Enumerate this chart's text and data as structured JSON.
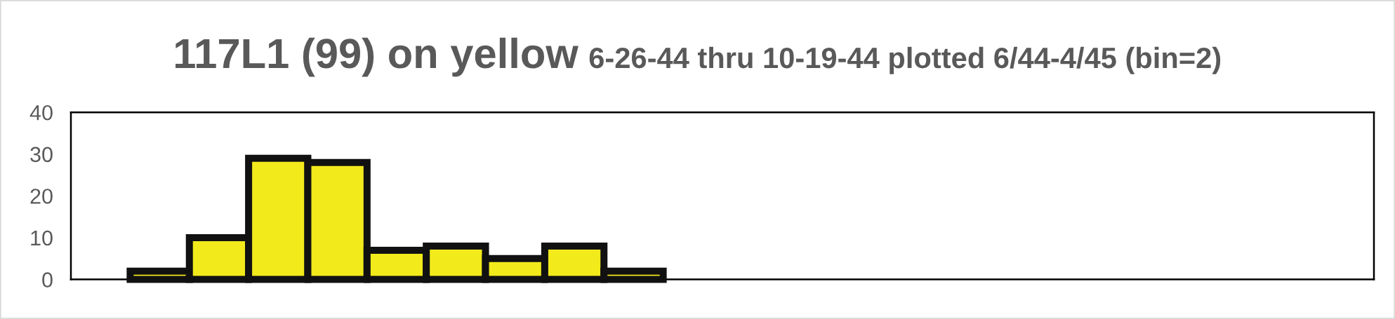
{
  "chart_data": {
    "type": "bar",
    "title": "117L1 (99) on yellow",
    "subtitle": "6-26-44 thru 10-19-44 plotted 6/44-4/45 (bin=2)",
    "categories": [
      null,
      null,
      null,
      null,
      null,
      null,
      null,
      null,
      null,
      null,
      null,
      null,
      null,
      null,
      null,
      null,
      null,
      null,
      null,
      null,
      null,
      null
    ],
    "values": [
      null,
      2,
      10,
      29,
      28,
      7,
      8,
      5,
      8,
      2,
      null,
      null,
      null,
      null,
      null,
      null,
      null,
      null,
      null,
      null,
      null,
      null
    ],
    "color": "#f2ea1b",
    "ylim": [
      0,
      40
    ],
    "yticks": [
      0,
      10,
      20,
      30,
      40
    ],
    "grid": false,
    "tick_labels": "y"
  }
}
